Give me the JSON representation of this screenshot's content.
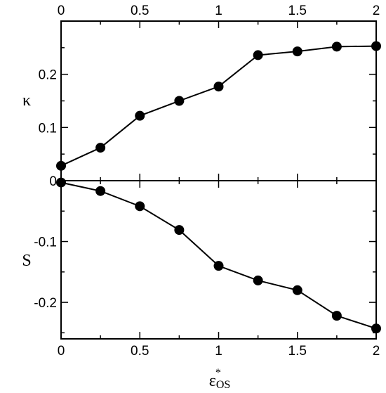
{
  "chart_data": [
    {
      "type": "line",
      "panel": "top",
      "ylabel": "κ",
      "xlim": [
        0,
        2
      ],
      "ylim": [
        0,
        0.3
      ],
      "xticks": [
        "0",
        "0.5",
        "1",
        "1.5",
        "2"
      ],
      "yticks": [
        "0.1",
        "0.2"
      ],
      "ytick_values": [
        0.1,
        0.2
      ],
      "x": [
        0,
        0.25,
        0.5,
        0.75,
        1.0,
        1.25,
        1.5,
        1.75,
        2.0
      ],
      "series": [
        {
          "values": [
            0.028,
            0.062,
            0.122,
            0.15,
            0.177,
            0.236,
            0.243,
            0.252,
            0.253
          ]
        }
      ],
      "marker": "filled-circle",
      "color": "#000000",
      "grid": false
    },
    {
      "type": "line",
      "panel": "bottom",
      "ylabel": "S",
      "xlabel": "ε",
      "xlabel_super": "*",
      "xlabel_sub": "OS",
      "xlim": [
        0,
        2
      ],
      "ylim": [
        -0.26,
        0
      ],
      "xticks": [
        "0",
        "0.5",
        "1",
        "1.5",
        "2"
      ],
      "yticks": [
        "0",
        "-0.1",
        "-0.2"
      ],
      "ytick_values": [
        0,
        -0.1,
        -0.2
      ],
      "x": [
        0,
        0.25,
        0.5,
        0.75,
        1.0,
        1.25,
        1.5,
        1.75,
        2.0
      ],
      "series": [
        {
          "values": [
            -0.003,
            -0.017,
            -0.042,
            -0.081,
            -0.14,
            -0.164,
            -0.18,
            -0.222,
            -0.243
          ]
        }
      ],
      "marker": "filled-circle",
      "color": "#000000",
      "grid": false
    }
  ]
}
